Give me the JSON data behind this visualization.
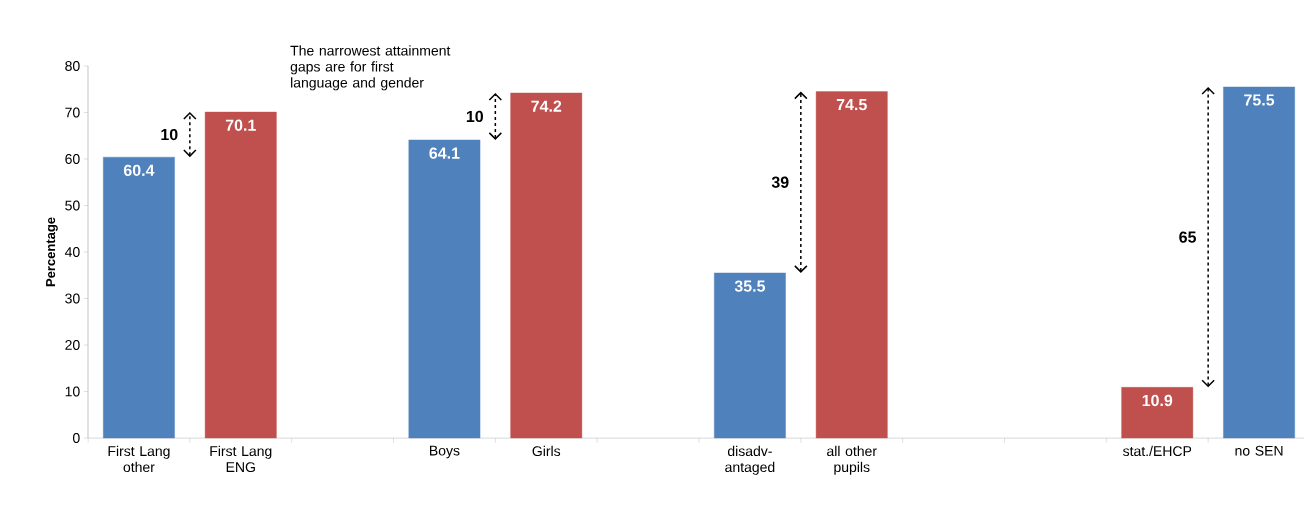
{
  "chart_data": {
    "type": "bar",
    "ylabel": "Percentage",
    "categories": [
      "First Lang other",
      "First Lang ENG",
      null,
      "Boys",
      "Girls",
      null,
      "disadv-antaged",
      "all other pupils",
      null,
      null,
      "stat./EHCP",
      "no SEN"
    ],
    "values": [
      60.4,
      70.1,
      null,
      64.1,
      74.2,
      null,
      35.5,
      74.5,
      null,
      null,
      10.9,
      75.5
    ],
    "colors": [
      "#4f81bd",
      "#c0504d",
      null,
      "#4f81bd",
      "#c0504d",
      null,
      "#4f81bd",
      "#c0504d",
      null,
      null,
      "#c0504d",
      "#4f81bd"
    ],
    "ylim": [
      0,
      80
    ],
    "yticks": [
      0,
      10,
      20,
      30,
      40,
      50,
      60,
      70,
      80
    ],
    "data_labels": true,
    "annotations": [
      "The narrowest attainment gaps are for first language and gender",
      "10",
      "10",
      "39",
      "65"
    ]
  }
}
